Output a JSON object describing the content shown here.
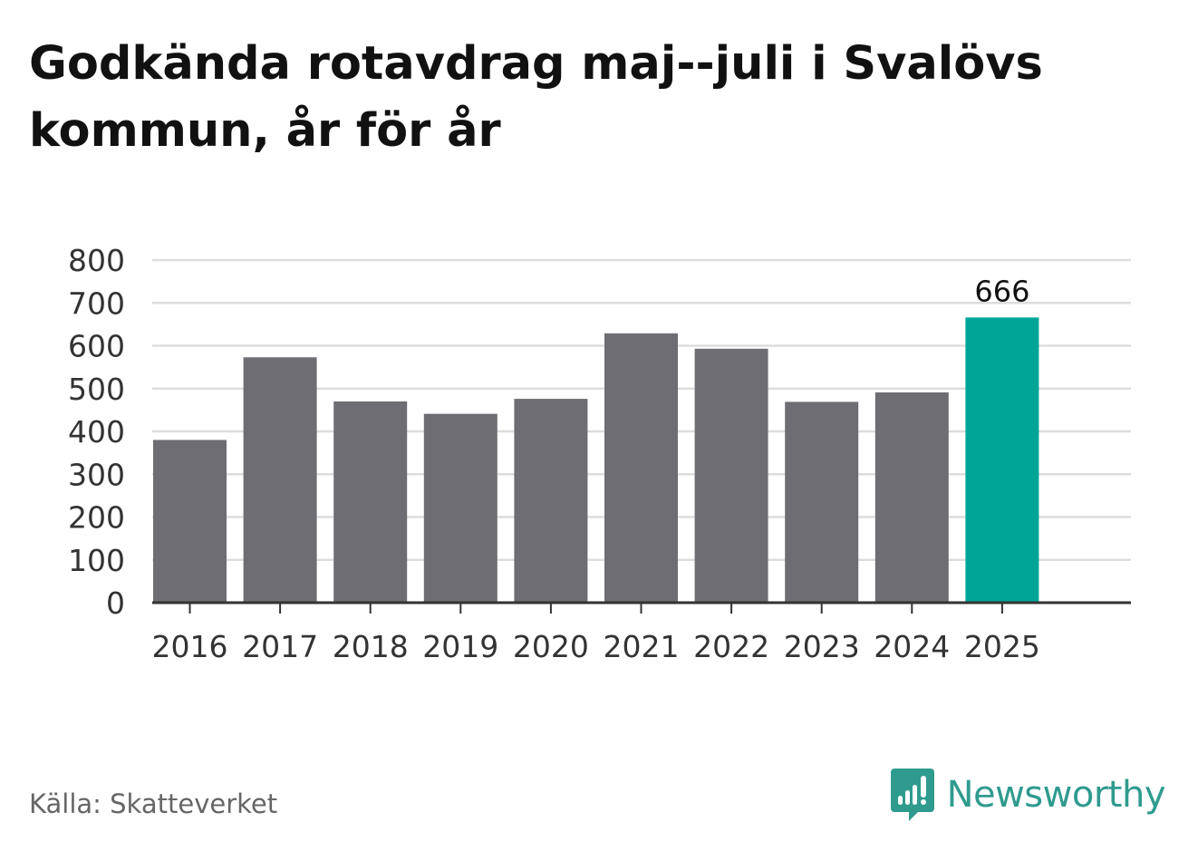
{
  "title": "Godkända rotavdrag maj--juli i Svalövs kommun, år för år",
  "source": "Källa: Skatteverket",
  "brand": {
    "name": "Newsworthy",
    "icon": "newsworthy-logo-icon",
    "color": "#2f9b8e"
  },
  "colors": {
    "bar": "#6e6d73",
    "highlight": "#00a598",
    "grid": "#dddddd",
    "axis": "#333333"
  },
  "chart_data": {
    "type": "bar",
    "categories": [
      "2016",
      "2017",
      "2018",
      "2019",
      "2020",
      "2021",
      "2022",
      "2023",
      "2024",
      "2025"
    ],
    "values": [
      380,
      573,
      470,
      441,
      476,
      629,
      593,
      469,
      491,
      666
    ],
    "highlight_index": 9,
    "data_labels": [
      {
        "index": 9,
        "text": "666"
      }
    ],
    "yticks": [
      0,
      100,
      200,
      300,
      400,
      500,
      600,
      700,
      800
    ],
    "ylim": [
      0,
      800
    ],
    "grid": true,
    "title": "Godkända rotavdrag maj--juli i Svalövs kommun, år för år",
    "xlabel": "",
    "ylabel": ""
  }
}
